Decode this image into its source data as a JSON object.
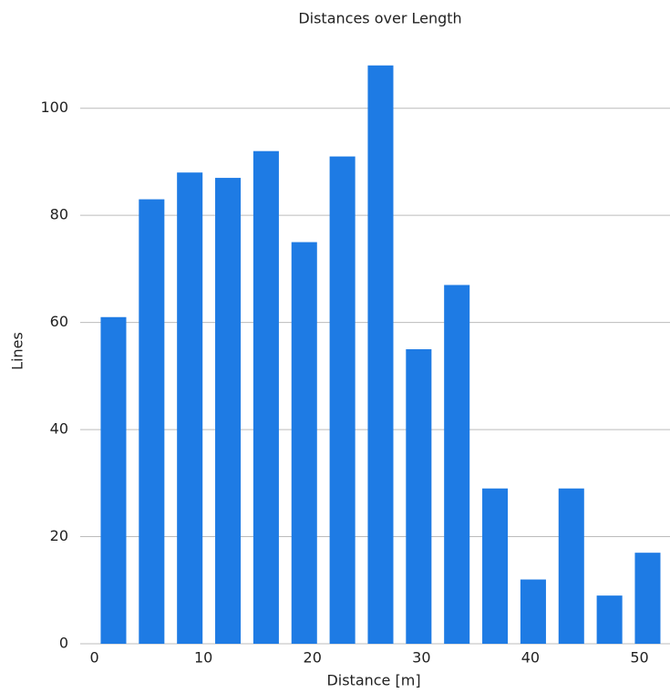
{
  "chart_data": {
    "type": "histogram",
    "title": "Distances over Length",
    "x_label": "Distance [m]",
    "y_label": "Lines",
    "bins": [
      0,
      3.5,
      7,
      10.5,
      14,
      17.5,
      21,
      24.5,
      28,
      31.5,
      35,
      38.5,
      42,
      45.5,
      49,
      52.5
    ],
    "values": [
      61,
      83,
      88,
      87,
      92,
      75,
      91,
      108,
      55,
      67,
      29,
      12,
      29,
      9,
      17
    ],
    "color": "#1e7be4",
    "xlim": [
      -1.3,
      52.8
    ],
    "xticks": [
      0,
      10,
      20,
      30,
      40,
      50
    ],
    "ylim": [
      0,
      110
    ],
    "yticks": [
      0,
      20,
      40,
      60,
      80,
      100
    ],
    "grid": true
  }
}
